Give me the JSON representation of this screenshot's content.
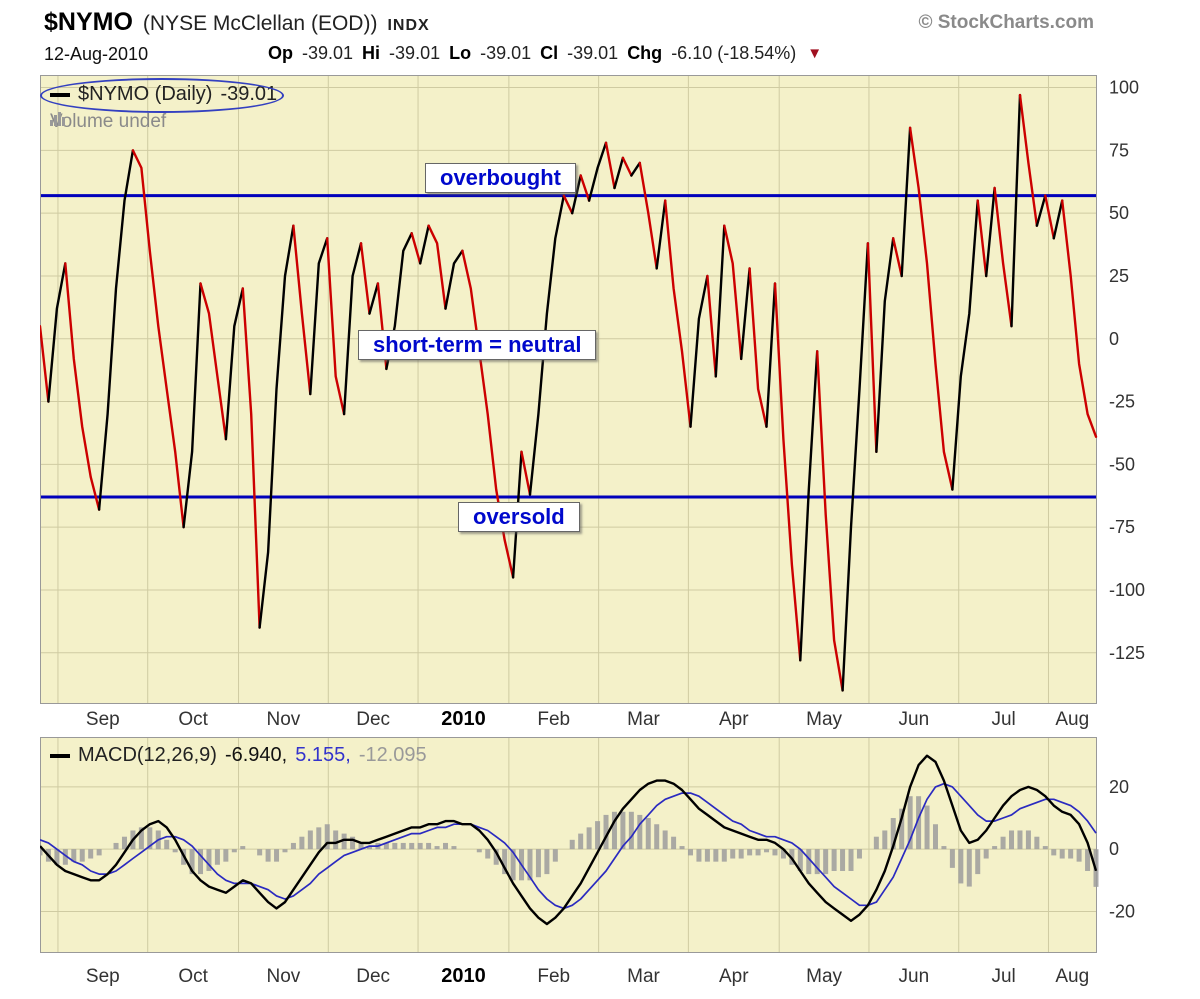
{
  "header": {
    "symbol": "$NYMO",
    "name": "(NYSE McClellan (EOD))",
    "exchange": "INDX",
    "copyright": "© StockCharts.com",
    "date": "12-Aug-2010",
    "quote": {
      "op_label": "Op",
      "op_value": "-39.01",
      "hi_label": "Hi",
      "hi_value": "-39.01",
      "lo_label": "Lo",
      "lo_value": "-39.01",
      "cl_label": "Cl",
      "cl_value": "-39.01",
      "chg_label": "Chg",
      "chg_value": "-6.10 (-18.54%)"
    }
  },
  "main_chart": {
    "legend_line": "$NYMO (Daily)",
    "legend_value": "-39.01",
    "volume_label": "Volume undef",
    "annotations": {
      "overbought": "overbought",
      "neutral": "short-term = neutral",
      "oversold": "oversold"
    }
  },
  "macd_chart": {
    "legend_label": "MACD(12,26,9)",
    "macd_value": "-6.940,",
    "signal_value": "5.155,",
    "hist_value": "-12.095"
  },
  "colors": {
    "chart_bg": "#f4f1c9",
    "grid": "#cfcba2",
    "band_line": "#0000bb",
    "up": "#000000",
    "down": "#cc0000",
    "signal_line": "#2a2ac0",
    "histogram": "#9c9c9c",
    "annotation_text": "#0008cc"
  },
  "chart_data": [
    {
      "type": "line",
      "title": "$NYMO (Daily)",
      "last_value": -39.01,
      "ylim": [
        -145,
        105
      ],
      "yticks": [
        100,
        75,
        50,
        25,
        0,
        -25,
        -50,
        -75,
        -100,
        -125
      ],
      "overbought_level": 57,
      "oversold_level": -63,
      "x_axis": {
        "month_labels": [
          "Sep",
          "Oct",
          "Nov",
          "Dec",
          "2010",
          "Feb",
          "Mar",
          "Apr",
          "May",
          "Jun",
          "Jul",
          "Aug"
        ],
        "month_fracs": [
          0.017,
          0.102,
          0.188,
          0.273,
          0.358,
          0.444,
          0.529,
          0.614,
          0.7,
          0.785,
          0.87,
          0.955
        ],
        "bold_label": "2010"
      },
      "values": [
        5,
        -25,
        12,
        30,
        -8,
        -35,
        -55,
        -68,
        -30,
        20,
        55,
        75,
        68,
        35,
        5,
        -20,
        -45,
        -75,
        -45,
        22,
        10,
        -15,
        -40,
        5,
        20,
        -30,
        -115,
        -85,
        -20,
        25,
        45,
        10,
        -22,
        30,
        40,
        -15,
        -30,
        25,
        38,
        10,
        22,
        -12,
        5,
        35,
        42,
        30,
        45,
        38,
        12,
        30,
        35,
        20,
        -5,
        -30,
        -60,
        -80,
        -95,
        -45,
        -62,
        -30,
        10,
        40,
        57,
        50,
        65,
        55,
        68,
        78,
        60,
        72,
        65,
        70,
        50,
        28,
        55,
        20,
        -5,
        -35,
        8,
        25,
        -15,
        45,
        30,
        -8,
        28,
        -20,
        -35,
        22,
        -40,
        -90,
        -128,
        -60,
        -5,
        -70,
        -120,
        -140,
        -75,
        -20,
        38,
        -45,
        15,
        40,
        25,
        84,
        60,
        30,
        -10,
        -45,
        -60,
        -15,
        10,
        55,
        25,
        60,
        30,
        5,
        97,
        70,
        45,
        57,
        40,
        55,
        25,
        -10,
        -30,
        -39
      ]
    },
    {
      "type": "line+histogram",
      "title": "MACD(12,26,9)",
      "ylim": [
        -33,
        36
      ],
      "yticks": [
        20,
        0,
        -20
      ],
      "x_axis": {
        "month_labels": [
          "Sep",
          "Oct",
          "Nov",
          "Dec",
          "2010",
          "Feb",
          "Mar",
          "Apr",
          "May",
          "Jun",
          "Jul",
          "Aug"
        ],
        "month_fracs": [
          0.017,
          0.102,
          0.188,
          0.273,
          0.358,
          0.444,
          0.529,
          0.614,
          0.7,
          0.785,
          0.87,
          0.955
        ],
        "bold_label": "2010"
      },
      "macd": [
        1,
        -2,
        -5,
        -7,
        -8,
        -9,
        -10,
        -10,
        -8,
        -5,
        -1,
        3,
        6,
        8,
        9,
        7,
        3,
        -2,
        -7,
        -10,
        -12,
        -13,
        -14,
        -12,
        -10,
        -11,
        -14,
        -17,
        -19,
        -17,
        -13,
        -9,
        -5,
        -1,
        2,
        2,
        3,
        3,
        2,
        2,
        3,
        4,
        5,
        6,
        7,
        7,
        8,
        8,
        9,
        9,
        8,
        8,
        6,
        3,
        -1,
        -6,
        -11,
        -15,
        -19,
        -22,
        -24,
        -22,
        -19,
        -15,
        -11,
        -6,
        -1,
        4,
        9,
        13,
        16,
        19,
        21,
        22,
        22,
        21,
        19,
        16,
        13,
        11,
        9,
        7,
        6,
        5,
        4,
        3,
        3,
        2,
        0,
        -3,
        -7,
        -11,
        -14,
        -17,
        -19,
        -21,
        -23,
        -21,
        -18,
        -13,
        -7,
        1,
        10,
        20,
        27,
        30,
        28,
        22,
        14,
        6,
        2,
        3,
        6,
        10,
        14,
        17,
        19,
        20,
        19,
        17,
        14,
        12,
        11,
        8,
        2,
        -6.94
      ],
      "signal": [
        3,
        2,
        0,
        -2,
        -4,
        -5,
        -7,
        -8,
        -8,
        -7,
        -5,
        -3,
        -1,
        1,
        3,
        4,
        4,
        3,
        1,
        -2,
        -5,
        -8,
        -10,
        -11,
        -11,
        -11,
        -12,
        -13,
        -15,
        -16,
        -15,
        -13,
        -11,
        -8,
        -6,
        -4,
        -2,
        -1,
        0,
        1,
        1,
        2,
        3,
        4,
        5,
        5,
        6,
        7,
        7,
        8,
        8,
        8,
        7,
        6,
        4,
        2,
        -1,
        -5,
        -9,
        -13,
        -16,
        -18,
        -19,
        -18,
        -16,
        -13,
        -10,
        -7,
        -3,
        1,
        4,
        8,
        11,
        14,
        16,
        17,
        18,
        18,
        17,
        15,
        13,
        11,
        9,
        8,
        6,
        5,
        4,
        4,
        3,
        2,
        0,
        -3,
        -6,
        -9,
        -12,
        -14,
        -16,
        -18,
        -18,
        -17,
        -13,
        -9,
        -3,
        3,
        10,
        16,
        20,
        21,
        20,
        17,
        14,
        11,
        9,
        9,
        10,
        11,
        13,
        14,
        15,
        16,
        16,
        15,
        14,
        12,
        9,
        5.155
      ]
    }
  ]
}
